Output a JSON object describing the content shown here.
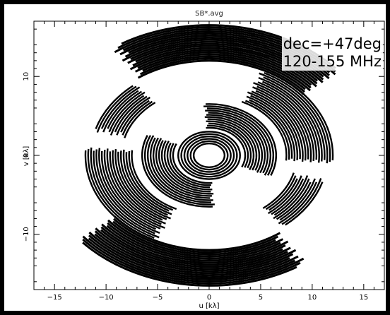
{
  "chart_data": {
    "type": "scatter",
    "title": "SB*.avg",
    "xlabel": "u [kλ]",
    "ylabel": "v [kλ]",
    "xlim": [
      -17,
      17
    ],
    "ylim": [
      -17,
      17
    ],
    "xticks": [
      -15,
      -10,
      -5,
      0,
      5,
      10,
      15
    ],
    "yticks": [
      -10,
      0,
      10
    ],
    "xtick_labels": [
      "−15",
      "−10",
      "−5",
      "0",
      "5",
      "10",
      "15"
    ],
    "ytick_labels": [
      "−10",
      "0",
      "10"
    ],
    "grid": false,
    "legend": "none",
    "annotations": [
      "dec=+47deg",
      "120-155 MHz"
    ],
    "annotation_placement": "top-right",
    "colors": {
      "background": "#000000",
      "panel": "#ffffff",
      "data": "#000000"
    },
    "arc_groups": [
      {
        "r_min": 12.0,
        "r_max": 16.5,
        "angle_min": 40,
        "angle_max": 125
      },
      {
        "r_min": 12.0,
        "r_max": 16.5,
        "angle_min": 220,
        "angle_max": 305
      },
      {
        "r_min": 7.5,
        "r_max": 12.0,
        "angle_min": -5,
        "angle_max": 65
      },
      {
        "r_min": 7.5,
        "r_max": 12.0,
        "angle_min": 175,
        "angle_max": 245
      },
      {
        "r_min": 8.5,
        "r_max": 11.5,
        "angle_min": 128,
        "angle_max": 165
      },
      {
        "r_min": 8.5,
        "r_max": 11.5,
        "angle_min": 308,
        "angle_max": 345
      },
      {
        "r_min": 3.5,
        "r_max": 6.5,
        "angle_min": -25,
        "angle_max": 95
      },
      {
        "r_min": 3.5,
        "r_max": 6.5,
        "angle_min": 155,
        "angle_max": 275
      },
      {
        "r_min": 1.5,
        "r_max": 3.0,
        "angle_min": 0,
        "angle_max": 360
      }
    ]
  }
}
